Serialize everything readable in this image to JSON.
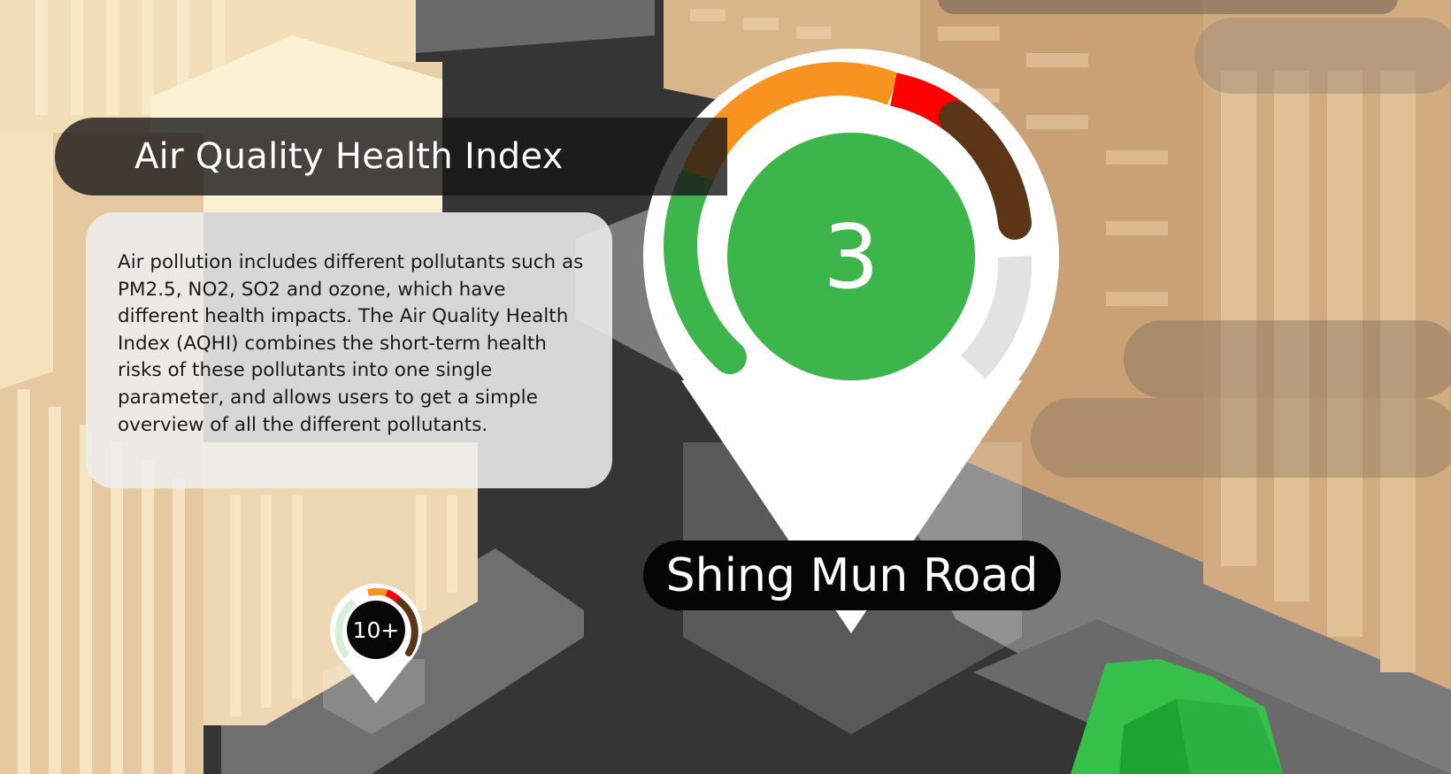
{
  "title": "Air Quality Health Index",
  "description": "Air pollution includes different pollutants such as PM2.5, NO2, SO2 and ozone, which have different health impacts.  The Air Quality Health Index (AQHI) combines the short-term health risks of these pollutants into one single parameter, and allows users to get a simple overview of all the different pollutants.",
  "main_marker": {
    "location": "Shing Mun Road",
    "aqhi_value": "3",
    "level_color": "#3cb54b"
  },
  "small_marker": {
    "aqhi_value": "10+"
  },
  "scale_colors": {
    "low": "#3cb54b",
    "moderate": "#f7931e",
    "high": "#ff0000",
    "very_high": "#5c3416",
    "inactive": "#d9d9d9"
  },
  "scene": {
    "road": "#333333",
    "building_light": "#e9d4b0",
    "building_tan": "#d5a97c",
    "tree": "#35c04a"
  }
}
